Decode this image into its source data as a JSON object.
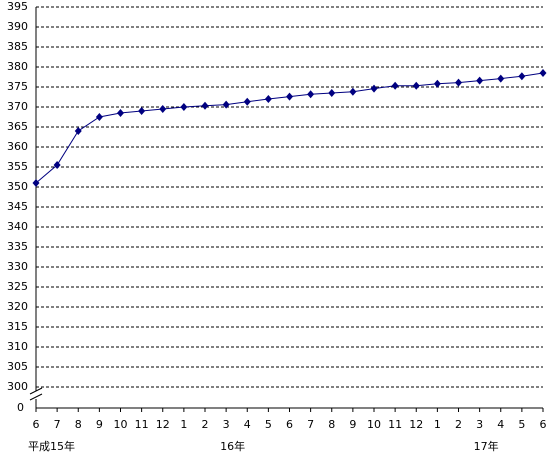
{
  "chart_data": {
    "type": "line",
    "categories": [
      "6",
      "7",
      "8",
      "9",
      "10",
      "11",
      "12",
      "1",
      "2",
      "3",
      "4",
      "5",
      "6",
      "7",
      "8",
      "9",
      "10",
      "11",
      "12",
      "1",
      "2",
      "3",
      "4",
      "5",
      "6"
    ],
    "x_group_labels": [
      "平成15年",
      null,
      null,
      null,
      null,
      null,
      null,
      null,
      null,
      "16年",
      null,
      null,
      null,
      null,
      null,
      null,
      null,
      null,
      null,
      null,
      null,
      "17年",
      null,
      null,
      null
    ],
    "series": [
      {
        "color": "#000080",
        "values": [
          351,
          355.5,
          364,
          367.5,
          368.5,
          369,
          369.5,
          370,
          370.3,
          370.6,
          371.3,
          372,
          372.6,
          373.2,
          373.5,
          373.8,
          374.6,
          375.3,
          375.3,
          375.8,
          376.1,
          376.6,
          377.1,
          377.7,
          378.5
        ]
      }
    ],
    "ylim": [
      300,
      395
    ],
    "yticks": [
      300,
      305,
      310,
      315,
      320,
      325,
      330,
      335,
      340,
      345,
      350,
      355,
      360,
      365,
      370,
      375,
      380,
      385,
      390,
      395
    ],
    "y_break_tick": 0,
    "grid": true
  }
}
